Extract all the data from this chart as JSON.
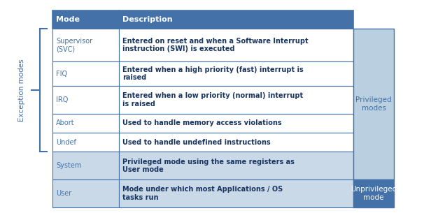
{
  "header": [
    "Mode",
    "Description"
  ],
  "rows": [
    [
      "Supervisor\n(SVC)",
      "Entered on reset and when a Software Interrupt\ninstruction (SWI) is executed"
    ],
    [
      "FIQ",
      "Entered when a high priority (fast) interrupt is\nraised"
    ],
    [
      "IRQ",
      "Entered when a low priority (normal) interrupt\nis raised"
    ],
    [
      "Abort",
      "Used to handle memory access violations"
    ],
    [
      "Undef",
      "Used to handle undefined instructions"
    ],
    [
      "System",
      "Privileged mode using the same registers as\nUser mode"
    ],
    [
      "User",
      "Mode under which most Applications / OS\ntasks run"
    ]
  ],
  "row_colors": [
    "#FFFFFF",
    "#FFFFFF",
    "#FFFFFF",
    "#FFFFFF",
    "#FFFFFF",
    "#C9D9E8",
    "#C9D9E8"
  ],
  "header_bg": "#4472A8",
  "header_fg": "#FFFFFF",
  "cell_bg_light": "#C9D9E8",
  "border_color": "#4472A8",
  "side_panel_bg": "#BACFE0",
  "side_panel_bottom_bg": "#4472A8",
  "fig_bg": "#FFFFFF",
  "text_mode_color": "#4472A8",
  "text_desc_color": "#1a3560",
  "left_label": "Exception modes",
  "right_label_top": "Privileged\nmodes",
  "right_label_bottom": "Unprivileged\nmode",
  "fig_width": 6.06,
  "fig_height": 3.05,
  "dpi": 100
}
